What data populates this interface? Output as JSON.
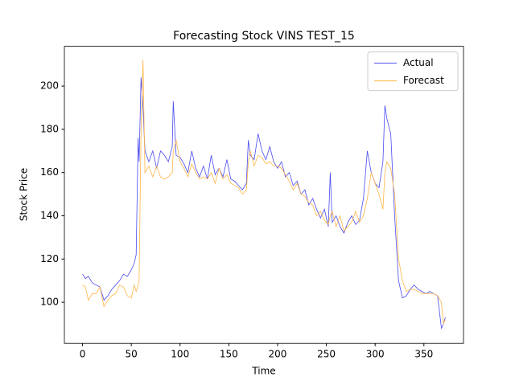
{
  "chart_data": {
    "type": "line",
    "title": "Forecasting Stock VINS TEST_15",
    "xlabel": "Time",
    "ylabel": "Stock Price",
    "x": [
      0,
      3,
      6,
      10,
      14,
      18,
      22,
      26,
      30,
      34,
      38,
      42,
      46,
      50,
      53,
      55,
      57,
      58,
      60,
      62,
      64,
      68,
      72,
      76,
      80,
      84,
      88,
      92,
      93,
      96,
      100,
      104,
      108,
      112,
      116,
      120,
      124,
      128,
      132,
      136,
      140,
      144,
      148,
      152,
      156,
      160,
      164,
      168,
      170,
      172,
      176,
      180,
      184,
      188,
      192,
      196,
      200,
      204,
      208,
      212,
      216,
      220,
      224,
      228,
      232,
      236,
      240,
      244,
      248,
      252,
      254,
      256,
      260,
      264,
      268,
      272,
      276,
      280,
      284,
      288,
      292,
      296,
      300,
      304,
      308,
      310,
      312,
      316,
      320,
      324,
      328,
      332,
      336,
      340,
      344,
      348,
      352,
      356,
      360,
      364,
      368,
      370,
      372
    ],
    "series": [
      {
        "name": "Actual",
        "color": "#4a4af0",
        "values": [
          113,
          111,
          112,
          109,
          108,
          107,
          101,
          103,
          106,
          108,
          110,
          113,
          112,
          115,
          118,
          122,
          176,
          165,
          204,
          190,
          170,
          165,
          170,
          162,
          170,
          168,
          165,
          172,
          193,
          168,
          167,
          164,
          160,
          170,
          162,
          158,
          163,
          157,
          168,
          159,
          162,
          158,
          166,
          157,
          156,
          154,
          152,
          155,
          175,
          168,
          166,
          178,
          170,
          166,
          172,
          165,
          162,
          165,
          158,
          160,
          154,
          156,
          150,
          152,
          145,
          148,
          143,
          139,
          143,
          135,
          160,
          137,
          140,
          135,
          132,
          137,
          140,
          136,
          138,
          148,
          170,
          160,
          155,
          153,
          165,
          191,
          185,
          178,
          140,
          110,
          102,
          103,
          106,
          108,
          106,
          105,
          104,
          105,
          104,
          103,
          88,
          90,
          93
        ]
      },
      {
        "name": "Forecast",
        "color": "#ffb547",
        "values": [
          108,
          107,
          101,
          104,
          104,
          107,
          98,
          101,
          103,
          104,
          108,
          107,
          103,
          102,
          108,
          105,
          108,
          110,
          180,
          212,
          160,
          163,
          158,
          163,
          158,
          157,
          158,
          160,
          170,
          175,
          165,
          162,
          158,
          164,
          160,
          157,
          158,
          157,
          160,
          155,
          162,
          157,
          159,
          155,
          154,
          153,
          150,
          152,
          165,
          170,
          163,
          168,
          167,
          164,
          165,
          163,
          163,
          162,
          159,
          156,
          152,
          155,
          150,
          149,
          146,
          145,
          140,
          142,
          138,
          136,
          140,
          142,
          135,
          140,
          133,
          135,
          137,
          142,
          137,
          140,
          148,
          160,
          155,
          150,
          143,
          160,
          165,
          162,
          150,
          120,
          110,
          105,
          106,
          106,
          105,
          104,
          104,
          104,
          104,
          103,
          100,
          90,
          92
        ]
      }
    ],
    "xlim": [
      -18.6,
      390.6
    ],
    "ylim": [
      81,
      218.4
    ],
    "xticks": [
      0,
      50,
      100,
      150,
      200,
      250,
      300,
      350
    ],
    "yticks": [
      100,
      120,
      140,
      160,
      180,
      200
    ],
    "legend": "upper right"
  }
}
